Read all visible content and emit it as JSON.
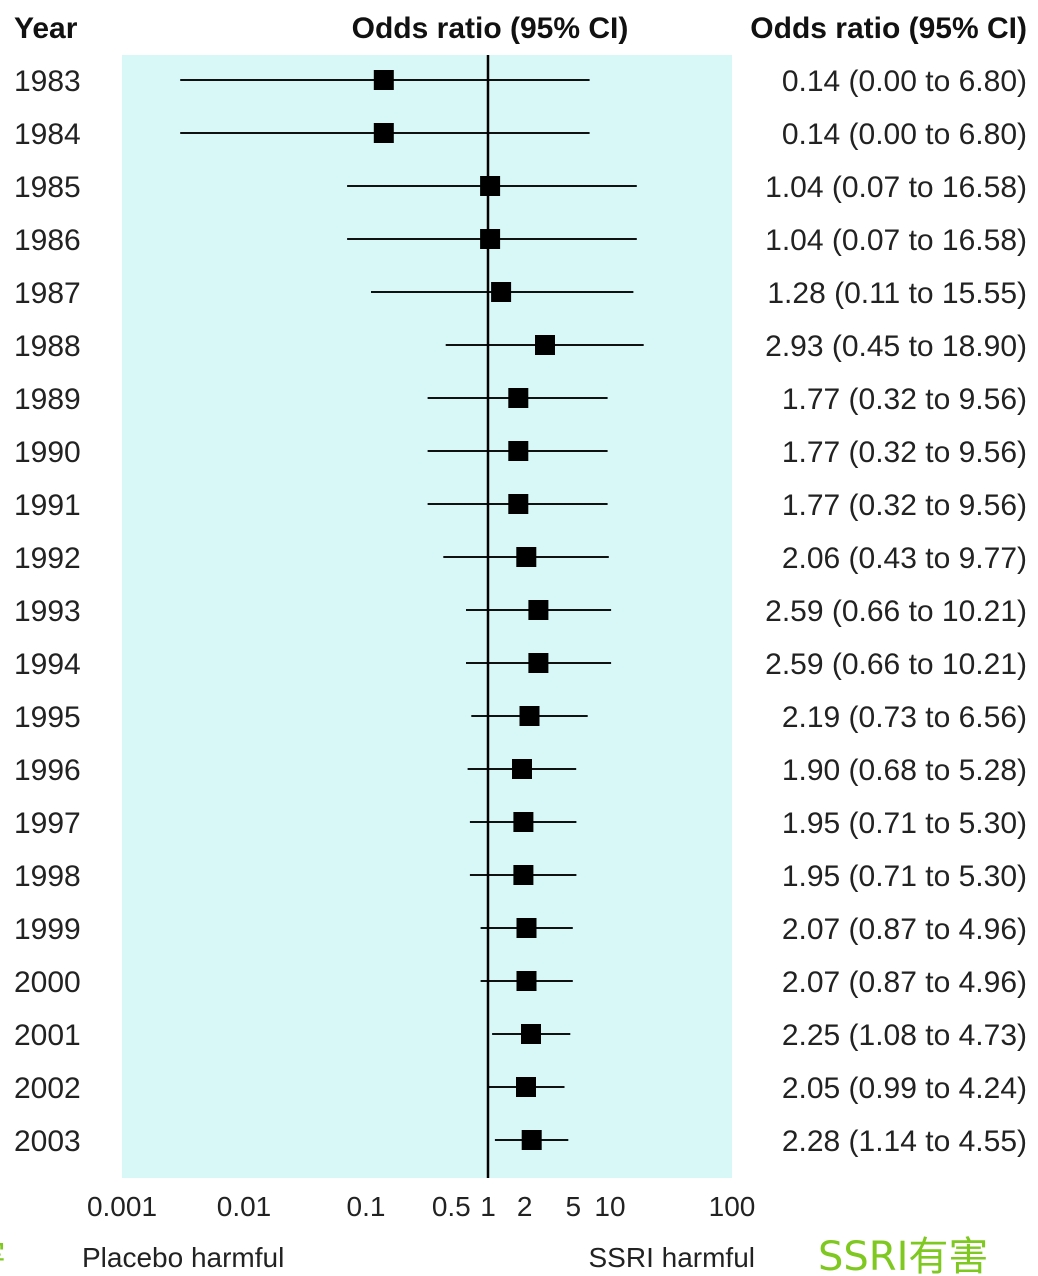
{
  "headers": {
    "year": "Year",
    "plot": "Odds ratio (95% CI)",
    "values": "Odds ratio (95% CI)"
  },
  "footer": {
    "left_cjk": "有害",
    "left_label": "Placebo harmful",
    "right_label": "SSRI harmful",
    "right_cjk": "SSRI有害"
  },
  "colors": {
    "panel_background": "#d8f8f8",
    "marker": "#000000",
    "cjk_text": "#7ec820"
  },
  "chart_data": {
    "type": "forest",
    "x_scale": "log",
    "xlim": [
      0.001,
      100
    ],
    "reference_value": 1,
    "x_ticks": [
      {
        "value": 0.001,
        "label": "0.001"
      },
      {
        "value": 0.01,
        "label": "0.01"
      },
      {
        "value": 0.1,
        "label": "0.1"
      },
      {
        "value": 0.5,
        "label": "0.5"
      },
      {
        "value": 1,
        "label": "1"
      },
      {
        "value": 2,
        "label": "2"
      },
      {
        "value": 5,
        "label": "5"
      },
      {
        "value": 10,
        "label": "10"
      },
      {
        "value": 100,
        "label": "100"
      }
    ],
    "rows": [
      {
        "year": "1983",
        "or": 0.14,
        "lo": 0.003,
        "hi": 6.8,
        "text": "0.14 (0.00 to 6.80)"
      },
      {
        "year": "1984",
        "or": 0.14,
        "lo": 0.003,
        "hi": 6.8,
        "text": "0.14 (0.00 to 6.80)"
      },
      {
        "year": "1985",
        "or": 1.04,
        "lo": 0.07,
        "hi": 16.58,
        "text": "1.04 (0.07 to 16.58)"
      },
      {
        "year": "1986",
        "or": 1.04,
        "lo": 0.07,
        "hi": 16.58,
        "text": "1.04 (0.07 to 16.58)"
      },
      {
        "year": "1987",
        "or": 1.28,
        "lo": 0.11,
        "hi": 15.55,
        "text": "1.28 (0.11 to 15.55)"
      },
      {
        "year": "1988",
        "or": 2.93,
        "lo": 0.45,
        "hi": 18.9,
        "text": "2.93 (0.45 to 18.90)"
      },
      {
        "year": "1989",
        "or": 1.77,
        "lo": 0.32,
        "hi": 9.56,
        "text": "1.77 (0.32 to 9.56)"
      },
      {
        "year": "1990",
        "or": 1.77,
        "lo": 0.32,
        "hi": 9.56,
        "text": "1.77 (0.32 to 9.56)"
      },
      {
        "year": "1991",
        "or": 1.77,
        "lo": 0.32,
        "hi": 9.56,
        "text": "1.77 (0.32 to 9.56)"
      },
      {
        "year": "1992",
        "or": 2.06,
        "lo": 0.43,
        "hi": 9.77,
        "text": "2.06 (0.43 to 9.77)"
      },
      {
        "year": "1993",
        "or": 2.59,
        "lo": 0.66,
        "hi": 10.21,
        "text": "2.59 (0.66 to 10.21)"
      },
      {
        "year": "1994",
        "or": 2.59,
        "lo": 0.66,
        "hi": 10.21,
        "text": "2.59 (0.66 to 10.21)"
      },
      {
        "year": "1995",
        "or": 2.19,
        "lo": 0.73,
        "hi": 6.56,
        "text": "2.19 (0.73 to 6.56)"
      },
      {
        "year": "1996",
        "or": 1.9,
        "lo": 0.68,
        "hi": 5.28,
        "text": "1.90 (0.68 to 5.28)"
      },
      {
        "year": "1997",
        "or": 1.95,
        "lo": 0.71,
        "hi": 5.3,
        "text": "1.95 (0.71 to 5.30)"
      },
      {
        "year": "1998",
        "or": 1.95,
        "lo": 0.71,
        "hi": 5.3,
        "text": "1.95 (0.71 to 5.30)"
      },
      {
        "year": "1999",
        "or": 2.07,
        "lo": 0.87,
        "hi": 4.96,
        "text": "2.07 (0.87 to 4.96)"
      },
      {
        "year": "2000",
        "or": 2.07,
        "lo": 0.87,
        "hi": 4.96,
        "text": "2.07 (0.87 to 4.96)"
      },
      {
        "year": "2001",
        "or": 2.25,
        "lo": 1.08,
        "hi": 4.73,
        "text": "2.25 (1.08 to 4.73)"
      },
      {
        "year": "2002",
        "or": 2.05,
        "lo": 0.99,
        "hi": 4.24,
        "text": "2.05 (0.99 to 4.24)"
      },
      {
        "year": "2003",
        "or": 2.28,
        "lo": 1.14,
        "hi": 4.55,
        "text": "2.28 (1.14 to 4.55)"
      }
    ]
  }
}
